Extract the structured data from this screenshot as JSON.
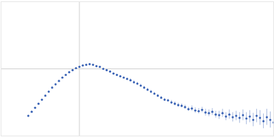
{
  "chart_data": {
    "type": "scatter",
    "x": [
      40,
      45,
      50,
      55,
      60,
      65,
      70,
      75,
      80,
      85,
      90,
      95,
      100,
      105,
      110,
      115,
      120,
      125,
      130,
      135,
      140,
      145,
      150,
      155,
      160,
      165,
      170,
      175,
      180,
      185,
      190,
      195,
      200,
      205,
      210,
      215,
      220,
      225,
      230,
      235,
      240,
      245,
      250,
      255,
      260,
      265,
      270,
      275,
      280,
      285,
      290,
      295,
      300,
      305,
      310,
      315,
      320,
      325,
      330,
      335,
      340,
      345,
      350,
      355,
      360,
      365,
      370,
      375,
      380,
      385,
      390,
      395,
      400
    ],
    "series": [
      {
        "values": [
          30,
          36,
          42,
          48,
          54,
          60,
          66,
          72,
          77,
          82,
          87,
          91,
          95,
          98,
          101,
          103,
          105,
          106,
          107,
          106,
          104,
          103,
          100,
          98,
          96,
          93,
          91,
          89,
          87,
          85,
          83,
          80,
          78,
          75,
          72,
          69,
          66,
          63,
          60,
          57,
          54,
          53,
          50,
          48,
          46,
          45,
          43,
          40,
          41,
          38,
          37,
          39,
          35,
          34,
          36,
          32,
          31,
          34,
          29,
          32,
          28,
          30,
          27,
          31,
          26,
          29,
          24,
          30,
          27,
          22,
          28,
          24,
          20
        ],
        "errors": [
          1,
          1,
          1,
          1,
          1,
          1,
          1,
          1,
          1,
          1,
          1,
          1,
          1,
          1,
          1,
          1,
          1,
          1,
          1,
          1,
          1,
          1,
          1,
          1,
          1,
          1,
          1,
          1,
          1,
          1,
          2,
          2,
          2,
          2,
          2,
          2,
          2,
          2,
          2,
          2,
          2,
          2,
          3,
          3,
          3,
          3,
          3,
          3,
          4,
          4,
          4,
          4,
          5,
          5,
          5,
          5,
          6,
          6,
          6,
          7,
          7,
          7,
          8,
          8,
          9,
          9,
          10,
          10,
          11,
          11,
          12,
          12,
          13
        ],
        "color": "#3a63b5",
        "marker": "circle"
      }
    ],
    "xlim": [
      0,
      400
    ],
    "ylim": [
      0,
      200
    ],
    "xticks": [
      115
    ],
    "yticks": [
      100
    ],
    "grid": true,
    "tick_labels": false
  }
}
